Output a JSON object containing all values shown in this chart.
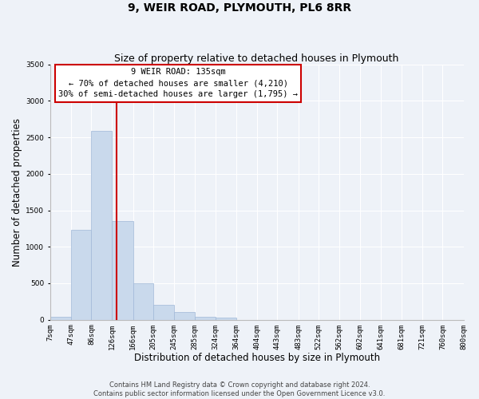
{
  "title": "9, WEIR ROAD, PLYMOUTH, PL6 8RR",
  "subtitle": "Size of property relative to detached houses in Plymouth",
  "xlabel": "Distribution of detached houses by size in Plymouth",
  "ylabel": "Number of detached properties",
  "bar_color": "#c9d9ec",
  "bar_edge_color": "#a0b8d8",
  "bins": [
    7,
    47,
    86,
    126,
    166,
    205,
    245,
    285,
    324,
    364,
    404,
    443,
    483,
    522,
    562,
    602,
    641,
    681,
    721,
    760,
    800
  ],
  "bin_labels": [
    "7sqm",
    "47sqm",
    "86sqm",
    "126sqm",
    "166sqm",
    "205sqm",
    "245sqm",
    "285sqm",
    "324sqm",
    "364sqm",
    "404sqm",
    "443sqm",
    "483sqm",
    "522sqm",
    "562sqm",
    "602sqm",
    "641sqm",
    "681sqm",
    "721sqm",
    "760sqm",
    "800sqm"
  ],
  "values": [
    45,
    1230,
    2590,
    1350,
    495,
    200,
    110,
    45,
    35,
    0,
    0,
    0,
    0,
    0,
    0,
    0,
    0,
    0,
    0,
    0
  ],
  "property_line_x": 135,
  "property_line_color": "#cc0000",
  "annotation_text": "9 WEIR ROAD: 135sqm\n← 70% of detached houses are smaller (4,210)\n30% of semi-detached houses are larger (1,795) →",
  "annotation_box_color": "#ffffff",
  "annotation_box_edge_color": "#cc0000",
  "ylim": [
    0,
    3500
  ],
  "yticks": [
    0,
    500,
    1000,
    1500,
    2000,
    2500,
    3000,
    3500
  ],
  "footnote": "Contains HM Land Registry data © Crown copyright and database right 2024.\nContains public sector information licensed under the Open Government Licence v3.0.",
  "background_color": "#eef2f8",
  "grid_color": "#ffffff",
  "title_fontsize": 10,
  "subtitle_fontsize": 9,
  "axis_label_fontsize": 8.5,
  "tick_fontsize": 6.5,
  "annotation_fontsize": 7.5,
  "footnote_fontsize": 6
}
